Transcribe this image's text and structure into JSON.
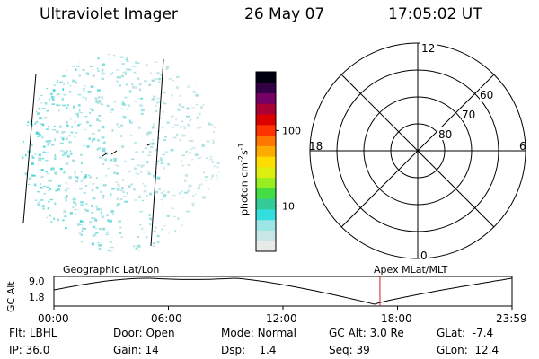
{
  "header": {
    "title": "Ultraviolet Imager",
    "date": "26 May 07",
    "time": "17:05:02 UT"
  },
  "colorbar": {
    "label": "photon cm⁻²s⁻¹",
    "label_main": "photon cm",
    "exp1": "-2",
    "label_s": "s",
    "exp2": "-1",
    "ticks": [
      "100",
      "10"
    ],
    "tick_values": [
      100,
      10
    ],
    "range": [
      2.5,
      600
    ],
    "scale": "log",
    "colors": [
      "#e8eaea",
      "#c9e6e6",
      "#9ee6e6",
      "#33dede",
      "#33cc99",
      "#44dd44",
      "#99ee22",
      "#ddee11",
      "#ffdd00",
      "#ffaa00",
      "#ff7700",
      "#ff3300",
      "#dd0000",
      "#aa0033",
      "#770066",
      "#330044",
      "#000011"
    ]
  },
  "polar_plot": {
    "lat_labels": [
      "60",
      "70",
      "80"
    ],
    "mlt_labels": {
      "top": "12",
      "bottom": "0",
      "left": "18",
      "right": "6"
    }
  },
  "timeline": {
    "ylabel": "GC Alt",
    "y_ticks": [
      "9.0",
      "1.8"
    ],
    "left_label": "Geographic Lat/Lon",
    "right_label": "Apex MLat/MLT",
    "x_ticks": [
      "00:00",
      "06:00",
      "12:00",
      "18:00",
      "23:59"
    ],
    "current_time_hours": 17.08,
    "marker_color": "#cc2222"
  },
  "status": {
    "flt_label": "Flt:",
    "flt": "LBHL",
    "ip_label": "IP:",
    "ip": "36.0",
    "door_label": "Door:",
    "door": "Open",
    "gain_label": "Gain:",
    "gain": "14",
    "mode_label": "Mode:",
    "mode": "Normal",
    "dsp_label": "Dsp:",
    "dsp": "1.4",
    "gcalt_label": "GC Alt:",
    "gcalt": "3.0 Re",
    "seq_label": "Seq:",
    "seq": "39",
    "glat_label": "GLat:",
    "glat": "-7.4",
    "glon_label": "GLon:",
    "glon": "12.4"
  }
}
